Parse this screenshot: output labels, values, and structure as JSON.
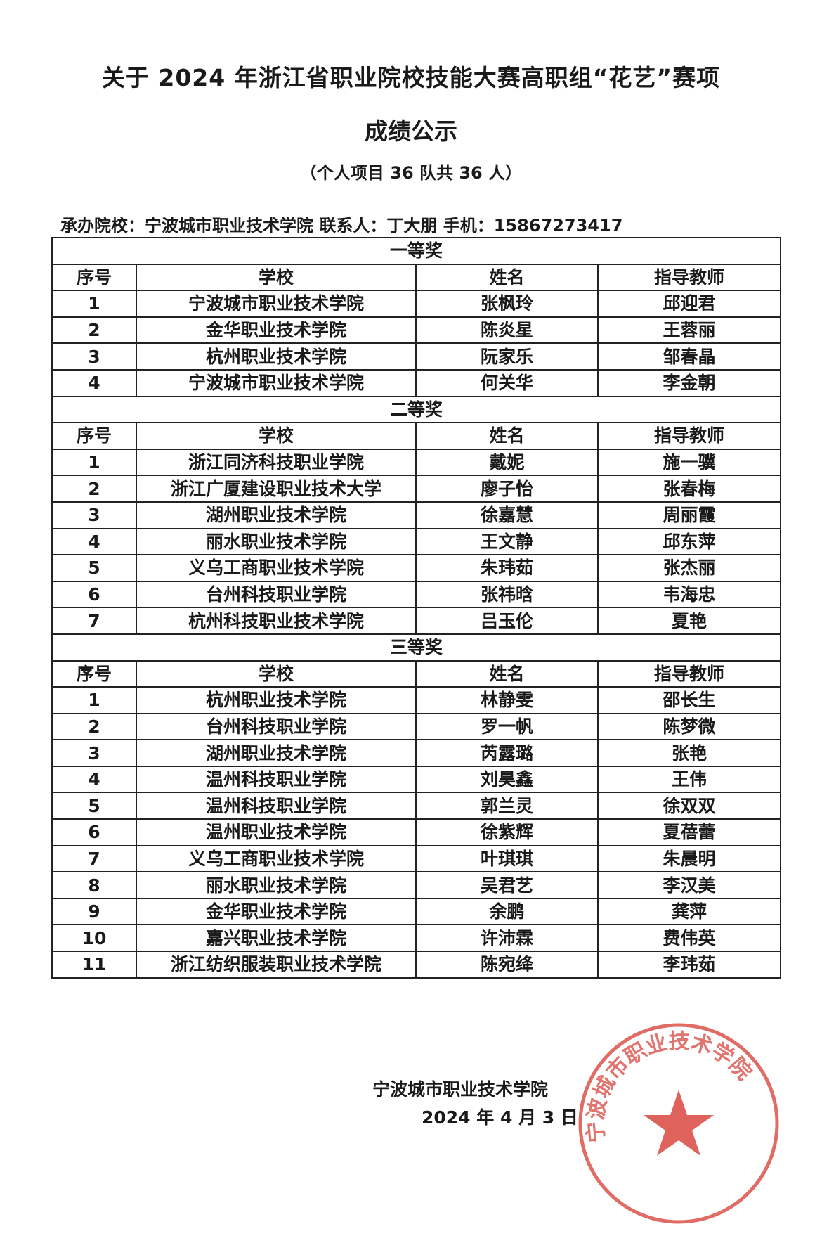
{
  "title_line1": "关于 2024 年浙江省职业院校技能大赛高职组“花艺”赛项",
  "title_line2": "成绩公示",
  "subtitle": "（个人项目 36 队共 36 人）",
  "host_line": "承办院校：宁波城市职业技术学院  联系人：丁大朋  手机：15867273417",
  "columns": [
    "序号",
    "学校",
    "姓名",
    "指导教师"
  ],
  "sections": [
    {
      "name": "一等奖",
      "rows": [
        [
          "1",
          "宁波城市职业技术学院",
          "张枫玲",
          "邱迎君"
        ],
        [
          "2",
          "金华职业技术学院",
          "陈炎星",
          "王蓉丽"
        ],
        [
          "3",
          "杭州职业技术学院",
          "阮家乐",
          "邹春晶"
        ],
        [
          "4",
          "宁波城市职业技术学院",
          "何关华",
          "李金朝"
        ]
      ]
    },
    {
      "name": "二等奖",
      "rows": [
        [
          "1",
          "浙江同济科技职业学院",
          "戴妮",
          "施一骥"
        ],
        [
          "2",
          "浙江广厦建设职业技术大学",
          "廖子怡",
          "张春梅"
        ],
        [
          "3",
          "湖州职业技术学院",
          "徐嘉慧",
          "周丽霞"
        ],
        [
          "4",
          "丽水职业技术学院",
          "王文静",
          "邱东萍"
        ],
        [
          "5",
          "义乌工商职业技术学院",
          "朱玮茹",
          "张杰丽"
        ],
        [
          "6",
          "台州科技职业学院",
          "张祎晗",
          "韦海忠"
        ],
        [
          "7",
          "杭州科技职业技术学院",
          "吕玉伦",
          "夏艳"
        ]
      ]
    },
    {
      "name": "三等奖",
      "rows": [
        [
          "1",
          "杭州职业技术学院",
          "林静雯",
          "邵长生"
        ],
        [
          "2",
          "台州科技职业学院",
          "罗一帆",
          "陈梦微"
        ],
        [
          "3",
          "湖州职业技术学院",
          "芮露璐",
          "张艳"
        ],
        [
          "4",
          "温州科技职业学院",
          "刘昊鑫",
          "王伟"
        ],
        [
          "5",
          "温州科技职业学院",
          "郭兰灵",
          "徐双双"
        ],
        [
          "6",
          "温州职业技术学院",
          "徐紫辉",
          "夏蓓蕾"
        ],
        [
          "7",
          "义乌工商职业技术学院",
          "叶琪琪",
          "朱晨明"
        ],
        [
          "8",
          "丽水职业技术学院",
          "吴君艺",
          "李汉美"
        ],
        [
          "9",
          "金华职业技术学院",
          "余鹏",
          "龚萍"
        ],
        [
          "10",
          "嘉兴职业技术学院",
          "许沛霖",
          "费伟英"
        ],
        [
          "11",
          "浙江纺织服装职业技术学院",
          "陈宛绛",
          "李玮茹"
        ]
      ]
    }
  ],
  "signature": "宁波城市职业技术学院",
  "date": "2024 年 4 月 3 日",
  "stamp": {
    "text": "宁波城市职业技术学院",
    "color": "#d9463f",
    "icon": "star-icon"
  }
}
